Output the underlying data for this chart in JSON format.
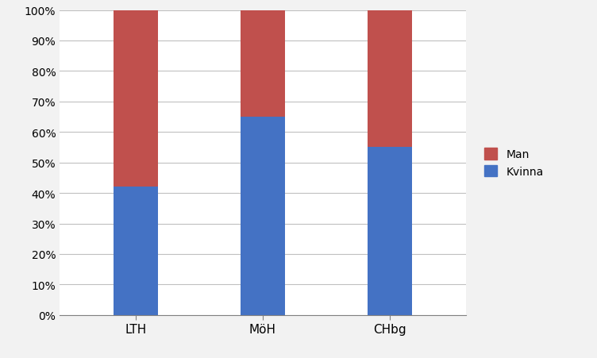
{
  "categories": [
    "LTH",
    "MöH",
    "CHbg"
  ],
  "kvinna": [
    42,
    65,
    55
  ],
  "man": [
    58,
    35,
    45
  ],
  "kvinna_color": "#4472C4",
  "man_color": "#C0504D",
  "background_color": "#F2F2F2",
  "plot_bg_color": "#FFFFFF",
  "grid_color": "#C0C0C0",
  "ytick_labels": [
    "0%",
    "10%",
    "20%",
    "30%",
    "40%",
    "50%",
    "60%",
    "70%",
    "80%",
    "90%",
    "100%"
  ],
  "ytick_values": [
    0,
    10,
    20,
    30,
    40,
    50,
    60,
    70,
    80,
    90,
    100
  ],
  "ylim": [
    0,
    100
  ],
  "legend_labels": [
    "Man",
    "Kvinna"
  ],
  "bar_width": 0.35,
  "figsize": [
    7.52,
    4.52
  ],
  "dpi": 100
}
